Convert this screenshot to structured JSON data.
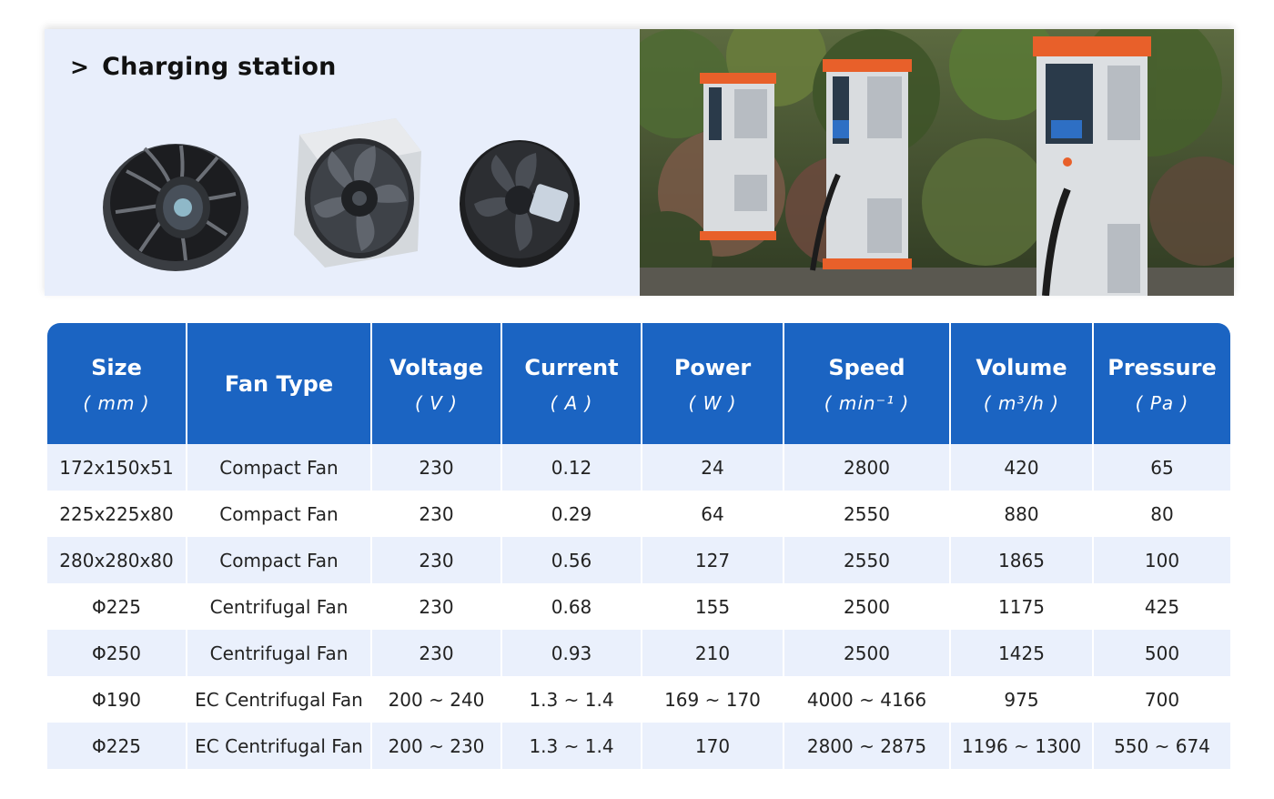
{
  "banner": {
    "chevron": ">",
    "title": "Charging station"
  },
  "table": {
    "headers": [
      {
        "name": "Size",
        "unit": "( mm )"
      },
      {
        "name": "Fan Type",
        "unit": ""
      },
      {
        "name": "Voltage",
        "unit": "( V )"
      },
      {
        "name": "Current",
        "unit": "( A )"
      },
      {
        "name": "Power",
        "unit": "( W )"
      },
      {
        "name": "Speed",
        "unit": "( min⁻¹ )"
      },
      {
        "name": "Volume",
        "unit": "( m³/h )"
      },
      {
        "name": "Pressure",
        "unit": "( Pa )"
      }
    ],
    "rows": [
      [
        "172x150x51",
        "Compact Fan",
        "230",
        "0.12",
        "24",
        "2800",
        "420",
        "65"
      ],
      [
        "225x225x80",
        "Compact Fan",
        "230",
        "0.29",
        "64",
        "2550",
        "880",
        "80"
      ],
      [
        "280x280x80",
        "Compact Fan",
        "230",
        "0.56",
        "127",
        "2550",
        "1865",
        "100"
      ],
      [
        "Φ225",
        "Centrifugal Fan",
        "230",
        "0.68",
        "155",
        "2500",
        "1175",
        "425"
      ],
      [
        "Φ250",
        "Centrifugal Fan",
        "230",
        "0.93",
        "210",
        "2500",
        "1425",
        "500"
      ],
      [
        "Φ190",
        "EC Centrifugal Fan",
        "200 ~ 240",
        "1.3 ~ 1.4",
        "169 ~ 170",
        "4000 ~ 4166",
        "975",
        "700"
      ],
      [
        "Φ225",
        "EC Centrifugal Fan",
        "200 ~ 230",
        "1.3 ~ 1.4",
        "170",
        "2800 ~ 2875",
        "1196 ~ 1300",
        "550 ~ 674"
      ]
    ]
  },
  "colors": {
    "header_blue": "#1b64c2",
    "row_tint": "#eaf0fc",
    "banner_bg": "#e8eefb",
    "station_orange": "#e8602a"
  }
}
